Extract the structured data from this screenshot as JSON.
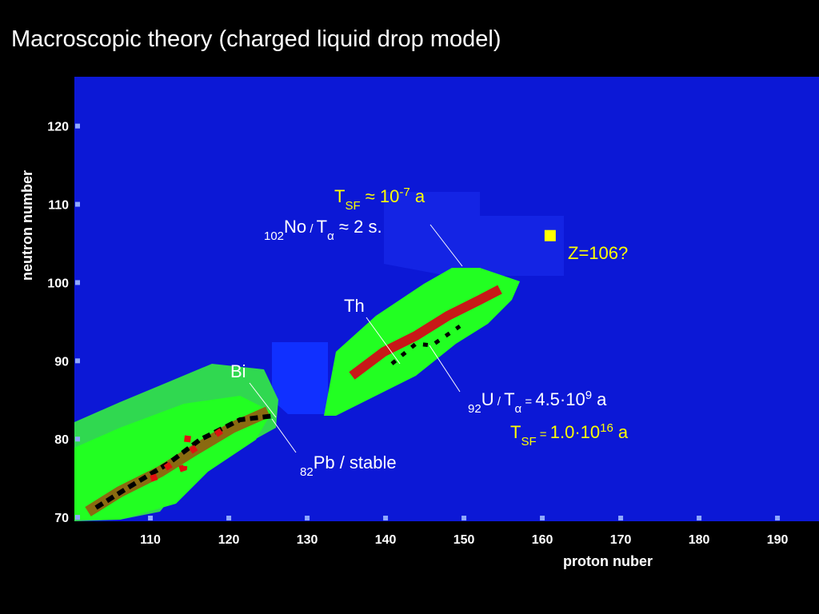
{
  "chart_data": {
    "type": "scatter",
    "title": "Macroscopic theory (charged liquid drop model)",
    "x_label": "proton nuber",
    "y_label": "neutron number",
    "xlim": [
      100.3,
      195.3
    ],
    "ylim": [
      69.5,
      126.3
    ],
    "xticks": [
      110,
      120,
      130,
      140,
      150,
      160,
      170,
      180,
      190
    ],
    "yticks": [
      70,
      80,
      90,
      100,
      110,
      120
    ],
    "series": [
      {
        "color": "#ffff00",
        "x": [
          161
        ],
        "values": [
          106
        ]
      }
    ],
    "annotations": [
      {
        "color": "#ffff00",
        "parts": [
          {
            "text": "T"
          },
          {
            "text": "SF",
            "shift": "sub"
          },
          {
            "text": " ≈ 10"
          },
          {
            "text": "-7",
            "shift": "super"
          },
          {
            "text": " a"
          }
        ]
      },
      {
        "color": "#ffffff",
        "parts": [
          {
            "text": "102",
            "shift": "sub"
          },
          {
            "text": "No"
          },
          {
            "text": " / ",
            "shift": "small"
          },
          {
            "text": "T"
          },
          {
            "text": "α",
            "shift": "sub"
          },
          {
            "text": " ≈ 2 s."
          }
        ]
      },
      {
        "color": "#ffff00",
        "parts": [
          {
            "text": "Z=106?"
          }
        ]
      },
      {
        "color": "#ffffff",
        "parts": [
          {
            "text": "Th"
          }
        ]
      },
      {
        "color": "#ffffff",
        "parts": [
          {
            "text": "Bi"
          }
        ]
      },
      {
        "color": "#ffffff",
        "parts": [
          {
            "text": "82",
            "shift": "sub"
          },
          {
            "text": "Pb / stable"
          }
        ]
      },
      {
        "color": "#ffffff",
        "parts": [
          {
            "text": "92",
            "shift": "sub"
          },
          {
            "text": "U"
          },
          {
            "text": " / ",
            "shift": "small"
          },
          {
            "text": "T"
          },
          {
            "text": "α",
            "shift": "sub"
          },
          {
            "text": " = ",
            "shift": "small"
          },
          {
            "text": "4.5·10"
          },
          {
            "text": "9",
            "shift": "super"
          },
          {
            "text": " a"
          }
        ]
      },
      {
        "color": "#ffff00",
        "parts": [
          {
            "text": "T"
          },
          {
            "text": "SF",
            "shift": "sub"
          },
          {
            "text": " = ",
            "shift": "small"
          },
          {
            "text": "1.0·10"
          },
          {
            "text": "16",
            "shift": "super"
          },
          {
            "text": " a"
          }
        ]
      }
    ]
  }
}
